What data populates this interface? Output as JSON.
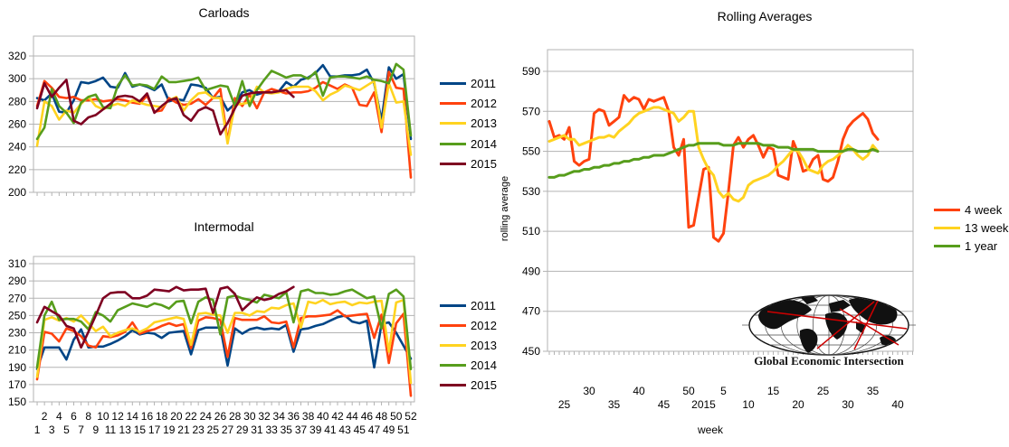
{
  "page": {
    "background": "#FFFFFF"
  },
  "logo": {
    "text": "Global Economic Intersection",
    "globe_color": "#111111",
    "line_color": "#CC0000"
  },
  "chart_data": [
    {
      "type": "line",
      "title": "Carloads",
      "xlabel": "",
      "ylabel": "",
      "ylim": [
        200,
        320
      ],
      "ytick_step": 20,
      "x_unit": "week",
      "x_weeks": 52,
      "grid": "horizontal",
      "legend_position": "right",
      "series": [
        {
          "name": "2011",
          "color": "#004586",
          "values": [
            283,
            281,
            287,
            271,
            270,
            281,
            297,
            296,
            298,
            301,
            293,
            292,
            305,
            293,
            295,
            293,
            290,
            295,
            280,
            282,
            281,
            295,
            294,
            292,
            283,
            284,
            272,
            278,
            288,
            290,
            286,
            288,
            288,
            289,
            297,
            293,
            299,
            301,
            305,
            312,
            302,
            302,
            303,
            303,
            304,
            308,
            296,
            263,
            310,
            300,
            304,
            247
          ]
        },
        {
          "name": "2012",
          "color": "#FF420E",
          "values": [
            276,
            298,
            292,
            284,
            283,
            284,
            281,
            281,
            282,
            280,
            281,
            282,
            281,
            279,
            278,
            285,
            271,
            272,
            283,
            279,
            277,
            278,
            282,
            277,
            283,
            291,
            245,
            283,
            276,
            286,
            274,
            288,
            291,
            289,
            287,
            288,
            288,
            289,
            292,
            297,
            294,
            291,
            295,
            292,
            277,
            276,
            288,
            253,
            306,
            292,
            291,
            213
          ]
        },
        {
          "name": "2013",
          "color": "#FFD320",
          "values": [
            241,
            280,
            276,
            264,
            272,
            270,
            278,
            284,
            276,
            273,
            276,
            278,
            276,
            281,
            279,
            277,
            276,
            275,
            281,
            284,
            272,
            281,
            287,
            288,
            283,
            283,
            243,
            277,
            278,
            279,
            293,
            288,
            287,
            288,
            291,
            293,
            293,
            293,
            289,
            281,
            286,
            289,
            294,
            292,
            290,
            294,
            298,
            257,
            296,
            279,
            280,
            233
          ]
        },
        {
          "name": "2014",
          "color": "#579D1C",
          "values": [
            247,
            257,
            291,
            276,
            270,
            261,
            279,
            284,
            286,
            275,
            274,
            294,
            303,
            294,
            295,
            294,
            291,
            302,
            297,
            297,
            298,
            299,
            301,
            290,
            292,
            294,
            293,
            276,
            298,
            276,
            290,
            299,
            307,
            304,
            301,
            303,
            303,
            300,
            306,
            285,
            301,
            302,
            302,
            301,
            300,
            302,
            299,
            298,
            296,
            313,
            308,
            250
          ]
        },
        {
          "name": "2015",
          "color": "#7E0021",
          "values": [
            274,
            296,
            284,
            292,
            299,
            263,
            260,
            266,
            268,
            273,
            278,
            284,
            285,
            284,
            280,
            287,
            270,
            276,
            281,
            283,
            268,
            263,
            272,
            275,
            272,
            251,
            261,
            274,
            285,
            287,
            288,
            288,
            288,
            289,
            290,
            284
          ]
        }
      ]
    },
    {
      "type": "line",
      "title": "Intermodal",
      "xlabel": "",
      "ylabel": "",
      "ylim": [
        150,
        310
      ],
      "ytick_step": 20,
      "x_unit": "week",
      "x_weeks": 52,
      "grid": "horizontal",
      "legend_position": "right",
      "x_tick_rows": [
        {
          "labels": [
            "2",
            "4",
            "6",
            "8",
            "10",
            "12",
            "14",
            "16",
            "18",
            "20",
            "22",
            "24",
            "26",
            "28",
            "30",
            "32",
            "34",
            "36",
            "38",
            "40",
            "42",
            "44",
            "46",
            "48",
            "50",
            "52"
          ],
          "positions": [
            1,
            3,
            5,
            7,
            9,
            11,
            13,
            15,
            17,
            19,
            21,
            23,
            25,
            27,
            29,
            31,
            33,
            35,
            37,
            39,
            41,
            43,
            45,
            47,
            49,
            51
          ]
        },
        {
          "labels": [
            "1",
            "3",
            "5",
            "7",
            "9",
            "11",
            "13",
            "15",
            "17",
            "19",
            "21",
            "23",
            "25",
            "27",
            "29",
            "31",
            "33",
            "35",
            "37",
            "39",
            "41",
            "43",
            "45",
            "47",
            "49",
            "51"
          ],
          "positions": [
            0,
            2,
            4,
            6,
            8,
            10,
            12,
            14,
            16,
            18,
            20,
            22,
            24,
            26,
            28,
            30,
            32,
            34,
            36,
            38,
            40,
            42,
            44,
            46,
            48,
            50
          ]
        }
      ],
      "series": [
        {
          "name": "2011",
          "color": "#004586",
          "values": [
            188,
            213,
            213,
            213,
            199,
            222,
            234,
            213,
            214,
            214,
            217,
            221,
            226,
            233,
            228,
            230,
            229,
            224,
            230,
            231,
            232,
            205,
            233,
            236,
            236,
            236,
            192,
            235,
            229,
            234,
            236,
            234,
            235,
            234,
            239,
            208,
            234,
            235,
            238,
            240,
            244,
            248,
            250,
            243,
            241,
            244,
            190,
            240,
            242,
            230,
            215,
            200
          ]
        },
        {
          "name": "2012",
          "color": "#FF420E",
          "values": [
            176,
            231,
            229,
            220,
            235,
            232,
            226,
            215,
            213,
            226,
            225,
            227,
            231,
            242,
            229,
            232,
            234,
            238,
            241,
            238,
            240,
            212,
            244,
            248,
            247,
            245,
            202,
            247,
            245,
            245,
            245,
            249,
            242,
            241,
            243,
            213,
            247,
            249,
            249,
            250,
            251,
            256,
            249,
            250,
            251,
            252,
            224,
            251,
            195,
            241,
            252,
            157
          ]
        },
        {
          "name": "2013",
          "color": "#FFD320",
          "values": [
            179,
            245,
            248,
            244,
            247,
            243,
            250,
            241,
            232,
            237,
            226,
            230,
            233,
            235,
            231,
            235,
            242,
            244,
            246,
            248,
            246,
            216,
            252,
            253,
            251,
            250,
            230,
            253,
            253,
            250,
            255,
            254,
            259,
            258,
            262,
            264,
            236,
            266,
            264,
            268,
            263,
            265,
            266,
            262,
            265,
            264,
            266,
            267,
            208,
            265,
            268,
            172
          ]
        },
        {
          "name": "2014",
          "color": "#579D1C",
          "values": [
            190,
            250,
            266,
            245,
            246,
            246,
            243,
            234,
            254,
            250,
            243,
            256,
            260,
            264,
            262,
            260,
            264,
            262,
            258,
            266,
            267,
            241,
            266,
            271,
            268,
            228,
            271,
            273,
            270,
            268,
            265,
            274,
            272,
            270,
            277,
            242,
            278,
            280,
            276,
            276,
            274,
            275,
            278,
            280,
            275,
            270,
            272,
            235,
            275,
            280,
            272,
            188
          ]
        },
        {
          "name": "2015",
          "color": "#7E0021",
          "values": [
            242,
            260,
            255,
            250,
            238,
            235,
            213,
            231,
            250,
            270,
            276,
            277,
            277,
            270,
            270,
            273,
            280,
            279,
            278,
            283,
            279,
            280,
            280,
            281,
            253,
            281,
            283,
            275,
            256,
            264,
            271,
            268,
            270,
            275,
            278,
            283
          ]
        }
      ]
    },
    {
      "type": "line",
      "title": "Rolling Averages",
      "xlabel": "week",
      "ylabel": "rolling average",
      "ylim": [
        450,
        590
      ],
      "ytick_step": 20,
      "x_unit": "week",
      "x_first_week": "2014 week 22",
      "x_last_labeled_week": "2015 week 40",
      "grid": "horizontal",
      "legend_position": "right",
      "x_tick_rows": [
        {
          "labels": [
            "30",
            "40",
            "50",
            "5",
            "15",
            "25",
            "35"
          ],
          "positions": [
            8,
            18,
            28,
            35,
            45,
            55,
            65
          ]
        },
        {
          "labels": [
            "25",
            "35",
            "45",
            "2015",
            "10",
            "20",
            "30",
            "40"
          ],
          "positions": [
            3,
            13,
            23,
            31,
            40,
            50,
            60,
            70
          ]
        }
      ],
      "series": [
        {
          "name": "4 week",
          "color": "#FF420E",
          "values": [
            565,
            557,
            558,
            556,
            562,
            545,
            543,
            545,
            546,
            569,
            571,
            570,
            563,
            565,
            567,
            578,
            575,
            577,
            576,
            571,
            576,
            575,
            576,
            577,
            570,
            552,
            548,
            556,
            512,
            513,
            527,
            541,
            542,
            507,
            505,
            509,
            530,
            553,
            557,
            552,
            556,
            558,
            553,
            547,
            552,
            551,
            538,
            537,
            536,
            555,
            549,
            540,
            541,
            546,
            548,
            536,
            535,
            537,
            545,
            556,
            562,
            565,
            567,
            569,
            566,
            559,
            556
          ]
        },
        {
          "name": "13 week",
          "color": "#FFD320",
          "values": [
            555,
            556,
            557,
            558,
            556,
            556,
            553,
            554,
            555,
            556,
            557,
            557,
            558,
            557,
            560,
            562,
            564,
            567,
            569,
            570,
            571,
            572,
            572,
            571,
            570,
            569,
            565,
            567,
            570,
            570,
            552,
            546,
            541,
            538,
            530,
            527,
            529,
            526,
            525,
            527,
            533,
            535,
            536,
            537,
            538,
            540,
            543,
            545,
            548,
            551,
            550,
            546,
            541,
            540,
            539,
            543,
            545,
            546,
            548,
            550,
            553,
            551,
            548,
            546,
            548,
            553,
            550
          ]
        },
        {
          "name": "1 year",
          "color": "#579D1C",
          "values": [
            537,
            537,
            538,
            538,
            539,
            540,
            540,
            541,
            541,
            542,
            542,
            543,
            543,
            544,
            544,
            545,
            545,
            546,
            546,
            547,
            547,
            548,
            548,
            548,
            549,
            550,
            551,
            552,
            553,
            553,
            554,
            554,
            554,
            554,
            554,
            553,
            553,
            553,
            554,
            554,
            554,
            554,
            554,
            553,
            553,
            553,
            552,
            552,
            552,
            551,
            551,
            551,
            551,
            551,
            550,
            550,
            550,
            550,
            550,
            550,
            551,
            551,
            550,
            550,
            550,
            551,
            550
          ]
        }
      ]
    }
  ]
}
